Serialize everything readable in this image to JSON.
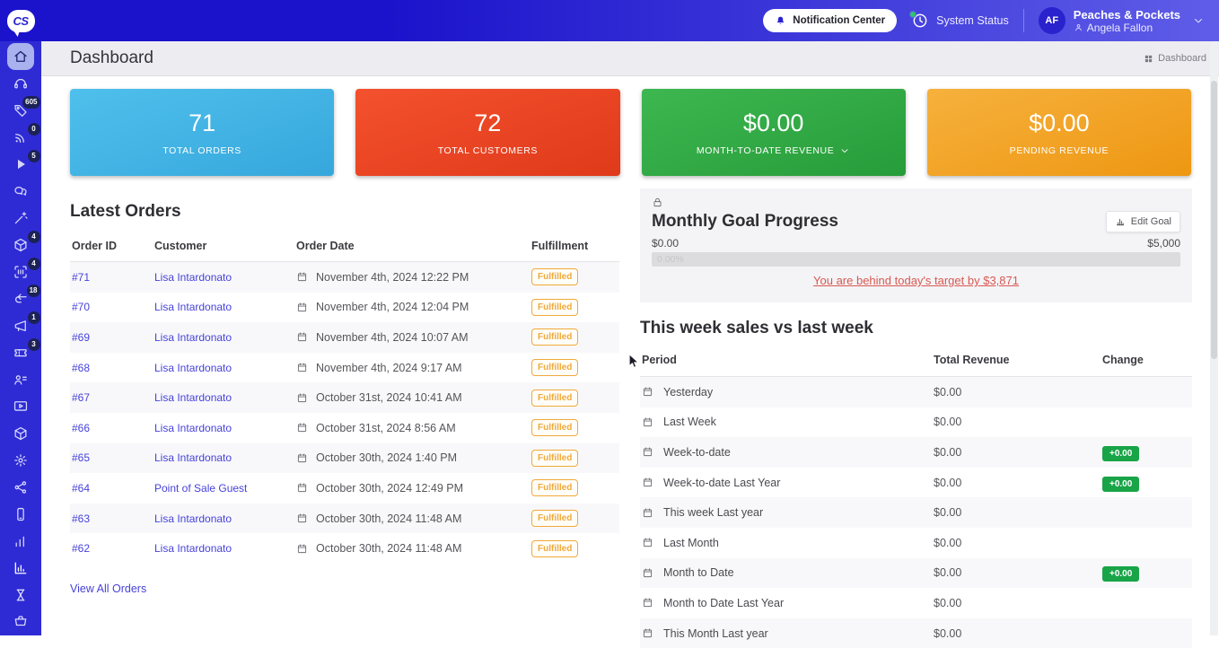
{
  "topbar": {
    "logo": "CS",
    "notification_center": "Notification Center",
    "system_status": "System Status",
    "account": {
      "initials": "AF",
      "shop": "Peaches & Pockets",
      "user": "Angela Fallon"
    }
  },
  "sidebar": {
    "items": [
      {
        "name": "home",
        "badge": null,
        "active": true
      },
      {
        "name": "headset",
        "badge": null
      },
      {
        "name": "tag",
        "badge": "605"
      },
      {
        "name": "broadcast",
        "badge": "0"
      },
      {
        "name": "play",
        "badge": "5"
      },
      {
        "name": "chat",
        "badge": null
      },
      {
        "name": "wand",
        "badge": null
      },
      {
        "name": "cube",
        "badge": "4"
      },
      {
        "name": "scan",
        "badge": "4"
      },
      {
        "name": "return",
        "badge": "18"
      },
      {
        "name": "megaphone",
        "badge": "1"
      },
      {
        "name": "ticket",
        "badge": "3"
      },
      {
        "name": "contacts",
        "badge": null
      },
      {
        "name": "video",
        "badge": null
      },
      {
        "name": "cube",
        "badge": null
      },
      {
        "name": "gear",
        "badge": null
      },
      {
        "name": "share",
        "badge": null
      },
      {
        "name": "phone",
        "badge": null
      },
      {
        "name": "bars",
        "badge": null
      },
      {
        "name": "analytics",
        "badge": null,
        "bright": true
      },
      {
        "name": "hourglass",
        "badge": null
      },
      {
        "name": "cart",
        "badge": null
      }
    ]
  },
  "header": {
    "title": "Dashboard",
    "breadcrumb": "Dashboard"
  },
  "stat_cards": [
    {
      "value": "71",
      "label": "TOTAL ORDERS",
      "has_dropdown": false
    },
    {
      "value": "72",
      "label": "TOTAL CUSTOMERS",
      "has_dropdown": false
    },
    {
      "value": "$0.00",
      "label": "MONTH-TO-DATE REVENUE",
      "has_dropdown": true
    },
    {
      "value": "$0.00",
      "label": "PENDING REVENUE",
      "has_dropdown": false
    }
  ],
  "latest_orders": {
    "title": "Latest Orders",
    "columns": [
      "Order ID",
      "Customer",
      "Order Date",
      "Fulfillment"
    ],
    "rows": [
      {
        "id": "#71",
        "customer": "Lisa Intardonato",
        "date": "November 4th, 2024 12:22 PM",
        "status": "Fulfilled"
      },
      {
        "id": "#70",
        "customer": "Lisa Intardonato",
        "date": "November 4th, 2024 12:04 PM",
        "status": "Fulfilled"
      },
      {
        "id": "#69",
        "customer": "Lisa Intardonato",
        "date": "November 4th, 2024 10:07 AM",
        "status": "Fulfilled"
      },
      {
        "id": "#68",
        "customer": "Lisa Intardonato",
        "date": "November 4th, 2024 9:17 AM",
        "status": "Fulfilled"
      },
      {
        "id": "#67",
        "customer": "Lisa Intardonato",
        "date": "October 31st, 2024 10:41 AM",
        "status": "Fulfilled"
      },
      {
        "id": "#66",
        "customer": "Lisa Intardonato",
        "date": "October 31st, 2024 8:56 AM",
        "status": "Fulfilled"
      },
      {
        "id": "#65",
        "customer": "Lisa Intardonato",
        "date": "October 30th, 2024 1:40 PM",
        "status": "Fulfilled"
      },
      {
        "id": "#64",
        "customer": "Point of Sale Guest",
        "date": "October 30th, 2024 12:49 PM",
        "status": "Fulfilled"
      },
      {
        "id": "#63",
        "customer": "Lisa Intardonato",
        "date": "October 30th, 2024 11:48 AM",
        "status": "Fulfilled"
      },
      {
        "id": "#62",
        "customer": "Lisa Intardonato",
        "date": "October 30th, 2024 11:48 AM",
        "status": "Fulfilled"
      }
    ],
    "view_all": "View All Orders"
  },
  "goal": {
    "title": "Monthly Goal Progress",
    "edit_button": "Edit Goal",
    "min": "$0.00",
    "max": "$5,000",
    "percent": "0.00%",
    "warning": "You are behind today's target by $3,871"
  },
  "sales": {
    "title": "This week sales vs last week",
    "columns": [
      "Period",
      "Total Revenue",
      "Change"
    ],
    "rows": [
      {
        "period": "Yesterday",
        "revenue": "$0.00",
        "change": ""
      },
      {
        "period": "Last Week",
        "revenue": "$0.00",
        "change": ""
      },
      {
        "period": "Week-to-date",
        "revenue": "$0.00",
        "change": "+0.00"
      },
      {
        "period": "Week-to-date Last Year",
        "revenue": "$0.00",
        "change": "+0.00"
      },
      {
        "period": "This week Last year",
        "revenue": "$0.00",
        "change": ""
      },
      {
        "period": "Last Month",
        "revenue": "$0.00",
        "change": ""
      },
      {
        "period": "Month to Date",
        "revenue": "$0.00",
        "change": "+0.00"
      },
      {
        "period": "Month to Date Last Year",
        "revenue": "$0.00",
        "change": ""
      },
      {
        "period": "This Month Last year",
        "revenue": "$0.00",
        "change": ""
      }
    ]
  },
  "colors": {
    "topbar_from": "#1a13cb",
    "topbar_to": "#5f5de8",
    "sidebar_bg": "#2e2bd5",
    "link": "#4742da",
    "badge_green": "#18a447",
    "warn_red": "#d95852",
    "fulfilled": "#f0a93a",
    "card1a": "#4fc0ec",
    "card1b": "#36a7dc",
    "card2a": "#f4512e",
    "card2b": "#df3a1a",
    "card3a": "#3db750",
    "card3b": "#279c3a",
    "card4a": "#f6b13d",
    "card4b": "#ee9712"
  }
}
